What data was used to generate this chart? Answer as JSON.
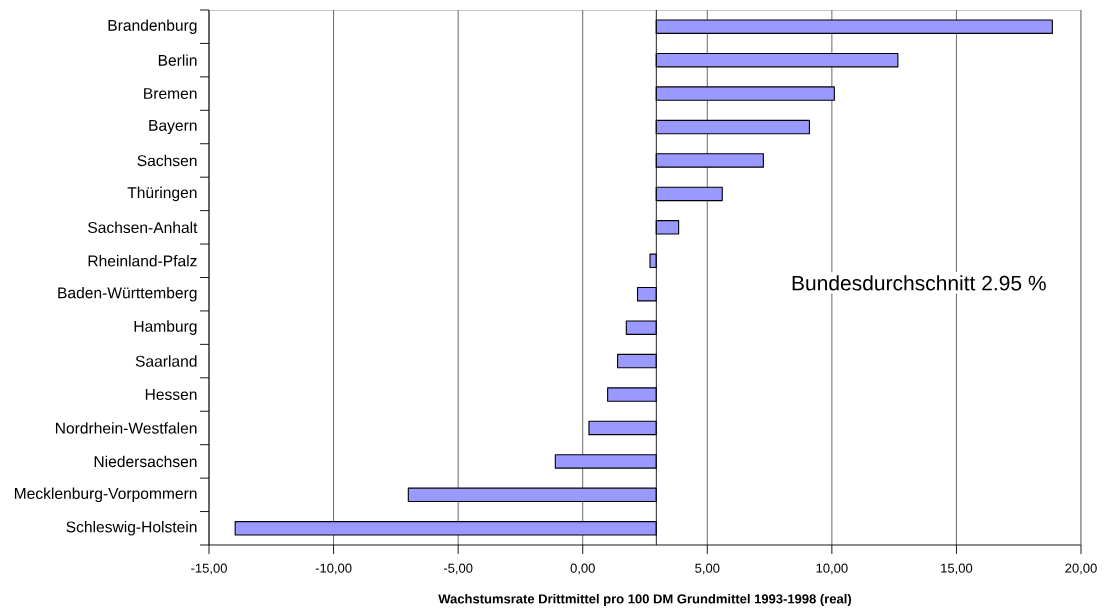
{
  "chart_data": {
    "type": "bar",
    "orientation": "horizontal",
    "xlabel": "Wachstumsrate Drittmittel pro 100 DM Grundmittel 1993-1998 (real)",
    "categories": [
      "Brandenburg",
      "Berlin",
      "Bremen",
      "Bayern",
      "Sachsen",
      "Thüringen",
      "Sachsen-Anhalt",
      "Rheinland-Pfalz",
      "Baden-Württemberg",
      "Hamburg",
      "Saarland",
      "Hessen",
      "Nordrhein-Westfalen",
      "Niedersachsen",
      "Mecklenburg-Vorpommern",
      "Schleswig-Holstein"
    ],
    "base": [
      2.95,
      2.95,
      2.95,
      2.95,
      2.95,
      2.95,
      2.95,
      2.95,
      2.95,
      2.95,
      2.95,
      2.95,
      2.95,
      2.95,
      2.95,
      2.95
    ],
    "values": [
      15.9,
      9.7,
      7.15,
      6.15,
      4.3,
      2.65,
      0.9,
      -0.25,
      -0.75,
      -1.2,
      -1.55,
      -1.95,
      -2.7,
      -4.05,
      -9.95,
      -16.9
    ],
    "color": "#9999ff",
    "xlim": [
      -15,
      20
    ],
    "xticks": [
      {
        "value": -15,
        "label": "-15,00"
      },
      {
        "value": -10,
        "label": "-10,00"
      },
      {
        "value": -5,
        "label": "-5,00"
      },
      {
        "value": 0,
        "label": "0,00"
      },
      {
        "value": 5,
        "label": "5,00"
      },
      {
        "value": 10,
        "label": "10,00"
      },
      {
        "value": 15,
        "label": "15,00"
      },
      {
        "value": 20,
        "label": "20,00"
      }
    ],
    "grid": "x",
    "ref_lines": [
      {
        "axis": "x",
        "value": 2.95,
        "label": "Bundesdurchschnitt 2.95 %",
        "color": "#000000"
      }
    ]
  }
}
